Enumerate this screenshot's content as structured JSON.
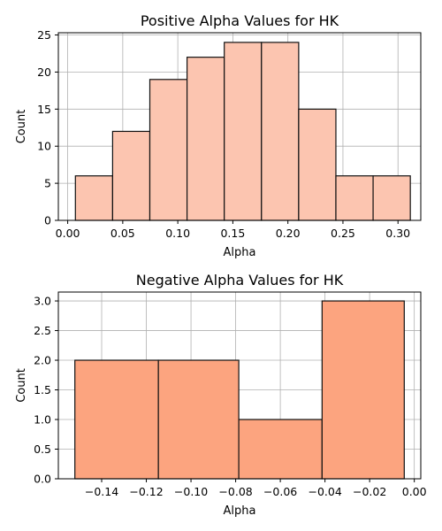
{
  "chart_data": [
    {
      "type": "bar",
      "subtype": "histogram",
      "title": "Positive Alpha Values for HK",
      "xlabel": "Alpha",
      "ylabel": "Count",
      "bin_edges": [
        0.007,
        0.0408,
        0.0746,
        0.1084,
        0.1422,
        0.176,
        0.2098,
        0.2436,
        0.2774,
        0.3112
      ],
      "values": [
        6,
        12,
        19,
        22,
        24,
        24,
        15,
        6,
        6
      ],
      "xlim": [
        -0.0085,
        0.3207
      ],
      "ylim": [
        0,
        25.3
      ],
      "xticks": [
        0.0,
        0.05,
        0.1,
        0.15,
        0.2,
        0.25,
        0.3
      ],
      "xtick_labels": [
        "0.00",
        "0.05",
        "0.10",
        "0.15",
        "0.20",
        "0.25",
        "0.30"
      ],
      "yticks": [
        0,
        5,
        10,
        15,
        20,
        25
      ],
      "ytick_labels": [
        "0",
        "5",
        "10",
        "15",
        "20",
        "25"
      ],
      "grid": true,
      "bar_color": "#fcc5b0",
      "edge_color": "#111111"
    },
    {
      "type": "bar",
      "subtype": "histogram",
      "title": "Negative Alpha Values for HK",
      "xlabel": "Alpha",
      "ylabel": "Count",
      "bin_edges": [
        -0.152,
        -0.1146,
        -0.0786,
        -0.0413,
        -0.0045
      ],
      "values": [
        2,
        2,
        1,
        3
      ],
      "xlim": [
        -0.1594,
        0.0029
      ],
      "ylim": [
        0,
        3.15
      ],
      "xticks": [
        -0.14,
        -0.12,
        -0.1,
        -0.08,
        -0.06,
        -0.04,
        -0.02,
        0.0
      ],
      "xtick_labels": [
        "−0.14",
        "−0.12",
        "−0.10",
        "−0.08",
        "−0.06",
        "−0.04",
        "−0.02",
        "0.00"
      ],
      "yticks": [
        0,
        0.5,
        1,
        1.5,
        2,
        2.5,
        3
      ],
      "ytick_labels": [
        "0.0",
        "0.5",
        "1.0",
        "1.5",
        "2.0",
        "2.5",
        "3.0"
      ],
      "grid": true,
      "bar_color": "#fca47f",
      "edge_color": "#111111"
    }
  ]
}
